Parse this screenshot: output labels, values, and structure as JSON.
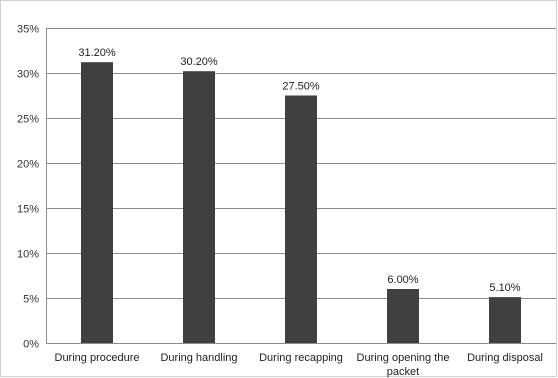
{
  "chart_data": {
    "type": "bar",
    "categories": [
      "During procedure",
      "During handling",
      "During recapping",
      "During opening the packet",
      "During disposal"
    ],
    "category_label_lines": [
      [
        "During procedure"
      ],
      [
        "During handling"
      ],
      [
        "During recapping"
      ],
      [
        "During opening the",
        "packet"
      ],
      [
        "During disposal"
      ]
    ],
    "values": [
      31.2,
      30.2,
      27.5,
      6.0,
      5.1
    ],
    "data_labels": [
      "31.20%",
      "30.20%",
      "27.50%",
      "6.00%",
      "5.10%"
    ],
    "title": "",
    "xlabel": "",
    "ylabel": "",
    "ylim": [
      0,
      35
    ],
    "yticks": [
      0,
      5,
      10,
      15,
      20,
      25,
      30,
      35
    ],
    "ytick_labels": [
      "0%",
      "5%",
      "10%",
      "15%",
      "20%",
      "25%",
      "30%",
      "35%"
    ],
    "grid": true,
    "legend": "none",
    "colors": {
      "bar": "#404040",
      "grid": "#8c8c8c",
      "axis": "#8c8c8c"
    }
  }
}
